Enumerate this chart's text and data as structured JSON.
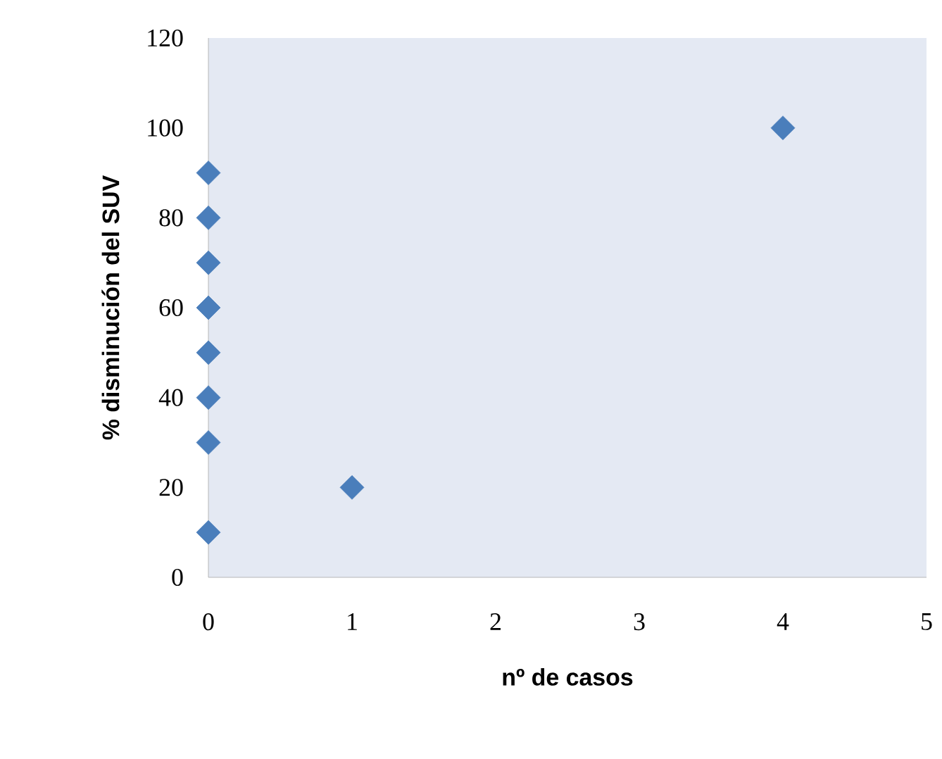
{
  "chart_data": {
    "type": "scatter",
    "xlabel": "nº de casos",
    "ylabel": "% disminución del SUV",
    "x": [
      0,
      0,
      0,
      0,
      0,
      0,
      0,
      0,
      1,
      4
    ],
    "values": [
      10,
      30,
      40,
      50,
      60,
      70,
      80,
      90,
      20,
      100
    ],
    "color": "#4a7ebb",
    "marker": "diamond",
    "xlim": [
      0,
      5
    ],
    "ylim": [
      0,
      120
    ],
    "xticks": [
      0,
      1,
      2,
      3,
      4,
      5
    ],
    "yticks": [
      0,
      20,
      40,
      60,
      80,
      100,
      120
    ]
  }
}
